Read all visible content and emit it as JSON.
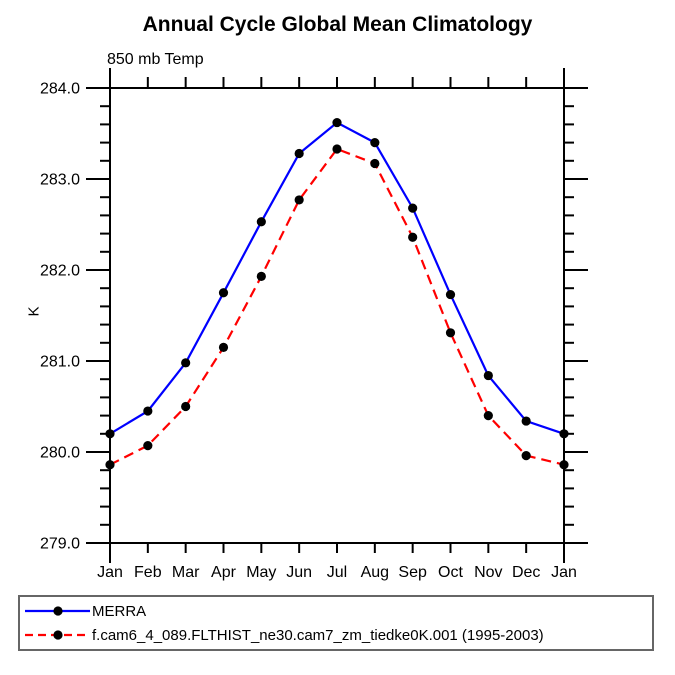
{
  "page": {
    "background": "#ffffff"
  },
  "chart_data": {
    "type": "line",
    "title": "Annual Cycle Global Mean Climatology",
    "subtitle": "850 mb Temp",
    "xlabel": "",
    "ylabel": "K",
    "categories": [
      "Jan",
      "Feb",
      "Mar",
      "Apr",
      "May",
      "Jun",
      "Jul",
      "Aug",
      "Sep",
      "Oct",
      "Nov",
      "Dec",
      "Jan"
    ],
    "ylim": [
      279.0,
      284.0
    ],
    "ytick_labels": [
      "279.0",
      "280.0",
      "281.0",
      "282.0",
      "283.0",
      "284.0"
    ],
    "ytick_values": [
      279,
      280,
      281,
      282,
      283,
      284
    ],
    "ytick_minor_step": 0.2,
    "grid": false,
    "legend_position": "bottom-left-box",
    "axis_color": "#000000",
    "series": [
      {
        "name": "MERRA",
        "color": "#0000ff",
        "style": "solid",
        "marker": "filled-circle",
        "marker_color": "#000000",
        "values": [
          280.2,
          280.45,
          280.98,
          281.75,
          282.53,
          283.28,
          283.62,
          283.4,
          282.68,
          281.73,
          280.84,
          280.34,
          280.2
        ]
      },
      {
        "name": "f.cam6_4_089.FLTHIST_ne30.cam7_zm_tiedke0K.001 (1995-2003)",
        "color": "#ff0000",
        "style": "dashed",
        "marker": "filled-circle",
        "marker_color": "#000000",
        "values": [
          279.86,
          280.07,
          280.5,
          281.15,
          281.93,
          282.77,
          283.33,
          283.17,
          282.36,
          281.31,
          280.4,
          279.96,
          279.86
        ]
      }
    ]
  }
}
